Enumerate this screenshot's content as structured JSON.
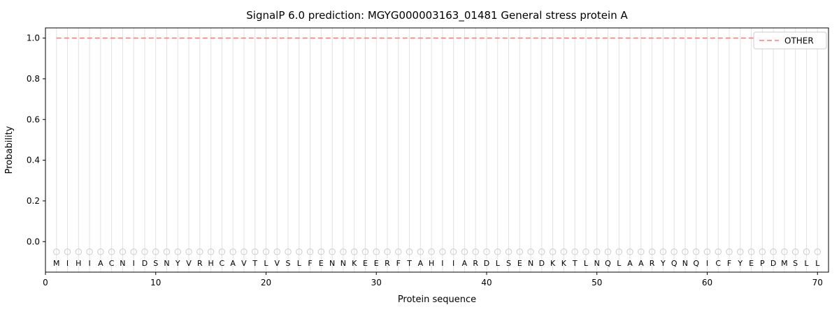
{
  "chart_data": {
    "type": "line",
    "title": "SignalP 6.0 prediction: MGYG000003163_01481 General stress protein A",
    "xlabel": "Protein sequence",
    "ylabel": "Probability",
    "xlim": [
      0,
      71
    ],
    "ylim": [
      -0.15,
      1.05
    ],
    "x_ticks": [
      "0",
      "10",
      "20",
      "30",
      "40",
      "50",
      "60",
      "70"
    ],
    "x_tick_values": [
      0,
      10,
      20,
      30,
      40,
      50,
      60,
      70
    ],
    "y_ticks": [
      "0.0",
      "0.2",
      "0.4",
      "0.6",
      "0.8",
      "1.0"
    ],
    "y_tick_values": [
      0.0,
      0.2,
      0.4,
      0.6,
      0.8,
      1.0
    ],
    "grid": "vertical gridline at every residue position; no horizontal gridlines",
    "sequence": "MIHIACNIDSNYVRHCAVTLVSLFENNKEERFTAHIIARDLSENDKKTLNQLAARYQNQICFYEPDMSLL",
    "series": [
      {
        "name": "OTHER",
        "type": "constant",
        "value": 1.0,
        "x_start": 1,
        "x_end": 70,
        "color": "#ff7b7b",
        "linestyle": "dashed"
      }
    ],
    "residue_markers": {
      "marker": "o",
      "y": -0.05,
      "color": "#c9c9c9"
    },
    "residue_letter_y": -0.105,
    "legend": {
      "position": "upper right",
      "entries": [
        {
          "label": "OTHER",
          "color": "#ff7b7b",
          "linestyle": "dashed"
        }
      ]
    },
    "colors": {
      "grid": "#e2e2e2",
      "spine": "#000000",
      "letter": "#1a1a1a",
      "tick": "#000000",
      "background": "#ffffff",
      "legend_border": "#cccccc"
    }
  }
}
